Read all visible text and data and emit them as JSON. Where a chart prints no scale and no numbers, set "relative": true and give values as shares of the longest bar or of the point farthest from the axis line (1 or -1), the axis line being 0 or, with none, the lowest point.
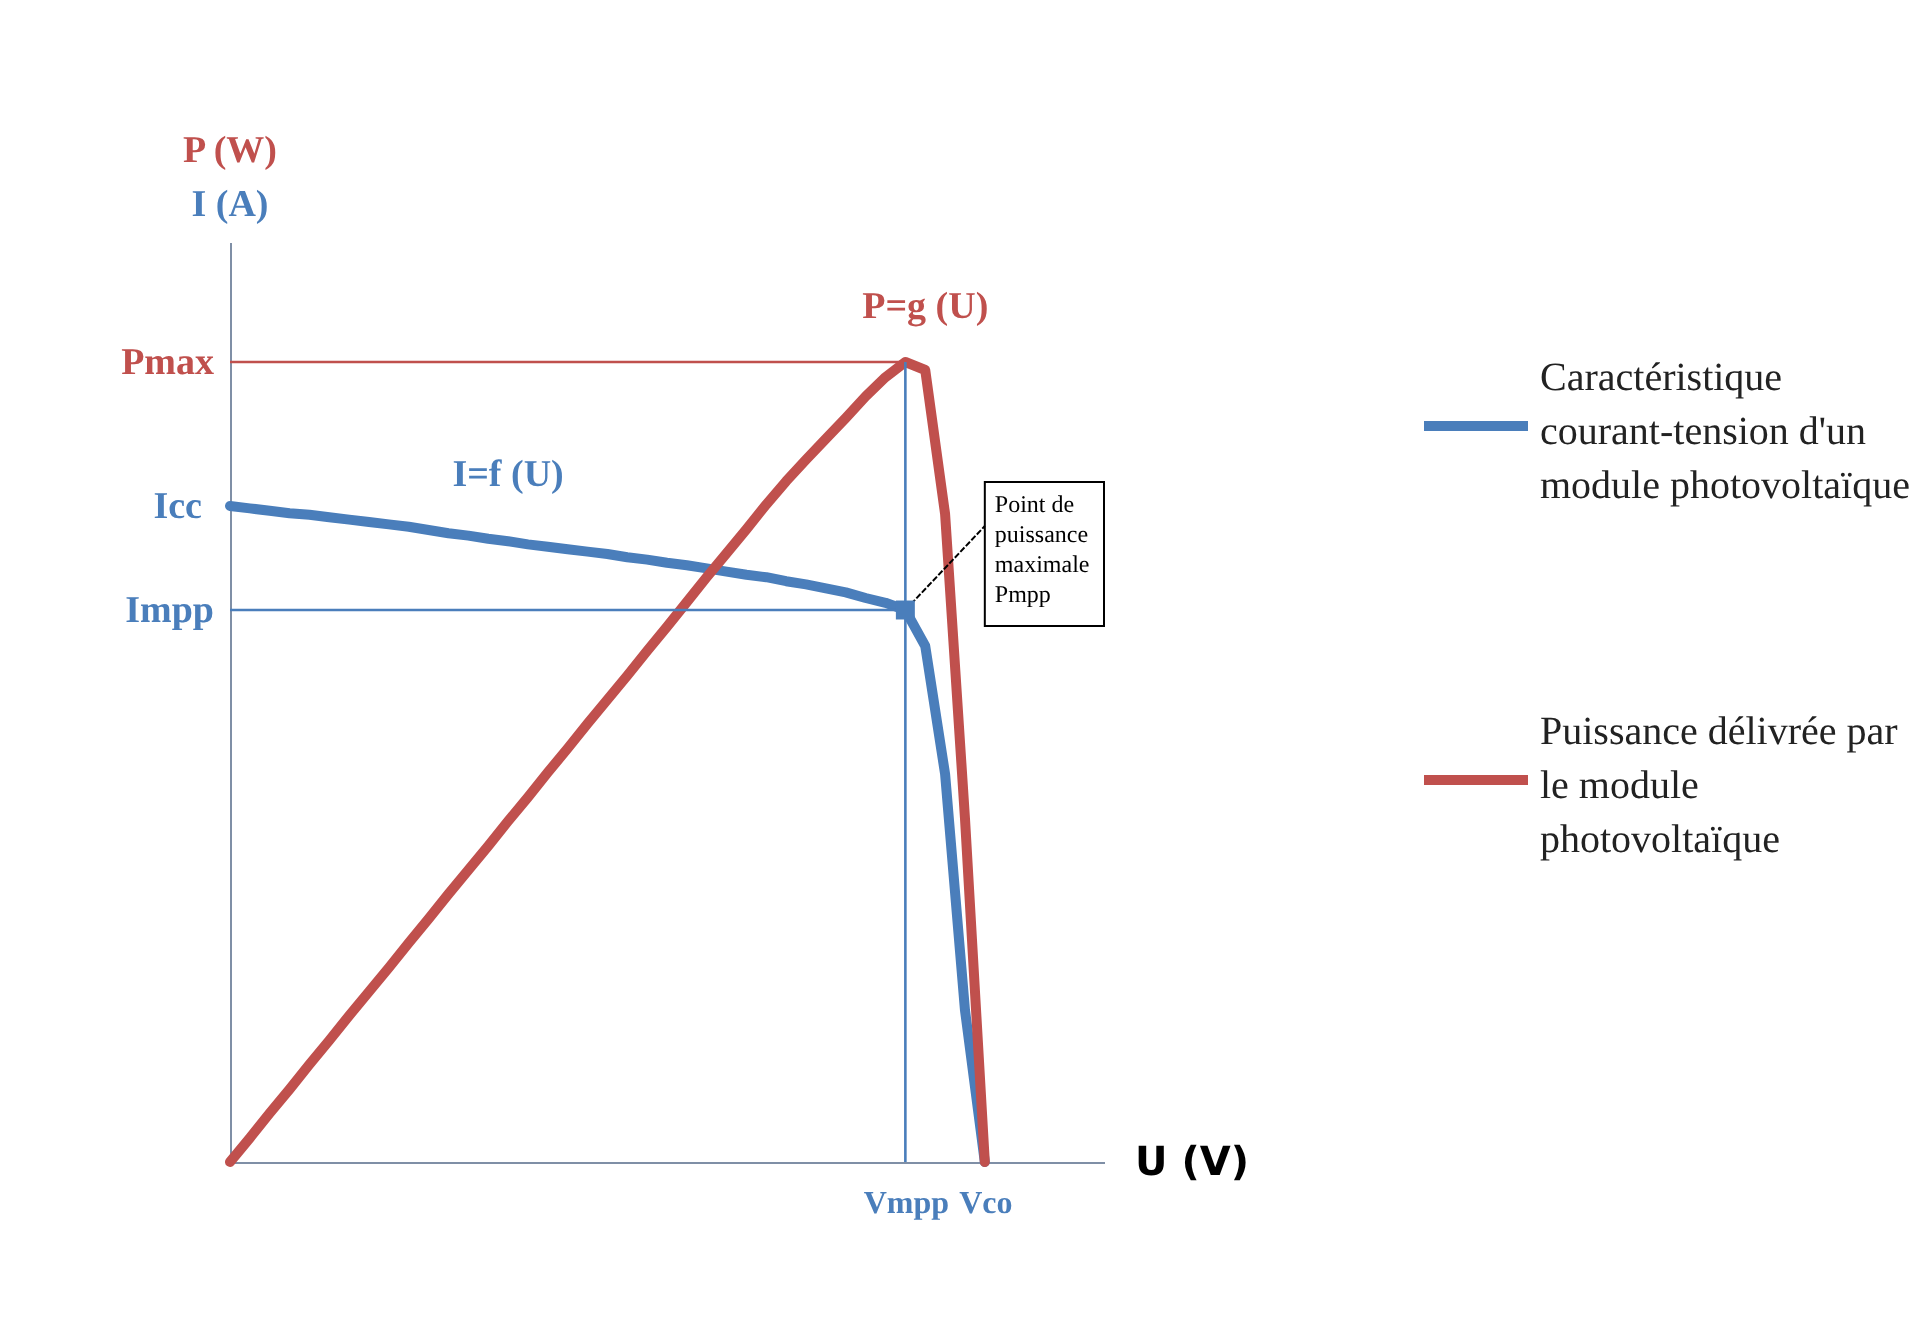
{
  "chart_data": {
    "type": "line",
    "relative": true,
    "xlabel": "U (V)",
    "ylabel": "P (W)",
    "y2label": "I (A)",
    "legend": "right",
    "tick_labels": "x",
    "categories": [
      null,
      null,
      null,
      null,
      null,
      null,
      null,
      null,
      null,
      null,
      null,
      null,
      null,
      null,
      null,
      null,
      null,
      null,
      null,
      null,
      null,
      null,
      null,
      null,
      null,
      null,
      null,
      null,
      null,
      null,
      null,
      null,
      null,
      null,
      "Vmpp",
      null,
      null,
      null,
      "Vco",
      null,
      null,
      null,
      null,
      null,
      null
    ],
    "series": [
      {
        "name": "Caractéristique courant-tension d'un module photovoltaïque",
        "color": "#4a7ebb",
        "axis": "y2",
        "values": [
          0.82,
          0.817,
          0.814,
          0.811,
          0.809,
          0.806,
          0.803,
          0.8,
          0.797,
          0.794,
          0.79,
          0.786,
          0.783,
          0.779,
          0.776,
          0.772,
          0.769,
          0.766,
          0.763,
          0.76,
          0.756,
          0.753,
          0.749,
          0.746,
          0.742,
          0.738,
          0.734,
          0.731,
          0.726,
          0.722,
          0.717,
          0.712,
          0.705,
          0.699,
          0.69,
          0.645,
          0.485,
          0.19,
          0,
          null,
          null,
          null,
          null,
          null,
          null
        ]
      },
      {
        "name": "Puissance délivrée par le module photovoltaïque",
        "color": "#c0504d",
        "values": [
          0,
          0.03,
          0.061,
          0.091,
          0.122,
          0.152,
          0.183,
          0.213,
          0.243,
          0.274,
          0.304,
          0.335,
          0.365,
          0.395,
          0.426,
          0.456,
          0.487,
          0.517,
          0.548,
          0.578,
          0.608,
          0.639,
          0.669,
          0.7,
          0.731,
          0.761,
          0.791,
          0.822,
          0.851,
          0.878,
          0.904,
          0.93,
          0.957,
          0.981,
          1,
          0.99,
          0.81,
          0.43,
          0,
          null,
          null,
          null,
          null,
          null,
          null
        ]
      }
    ],
    "ref_lines": [
      {
        "axis": "y",
        "value": 1,
        "label": "Pmax",
        "color": "#c0504d"
      },
      {
        "axis": "y",
        "value": 0.69,
        "label": "Impp",
        "color": "#4a7ebb"
      },
      {
        "axis": "x",
        "value": "Vmpp",
        "color": "#4a7ebb"
      }
    ],
    "annotations": [
      "Icc",
      "I=f (U)",
      "P=g (U)",
      {
        "text": "Point de puissance maximale Pmpp",
        "x": "Vmpp",
        "y": 0.69
      }
    ]
  }
}
